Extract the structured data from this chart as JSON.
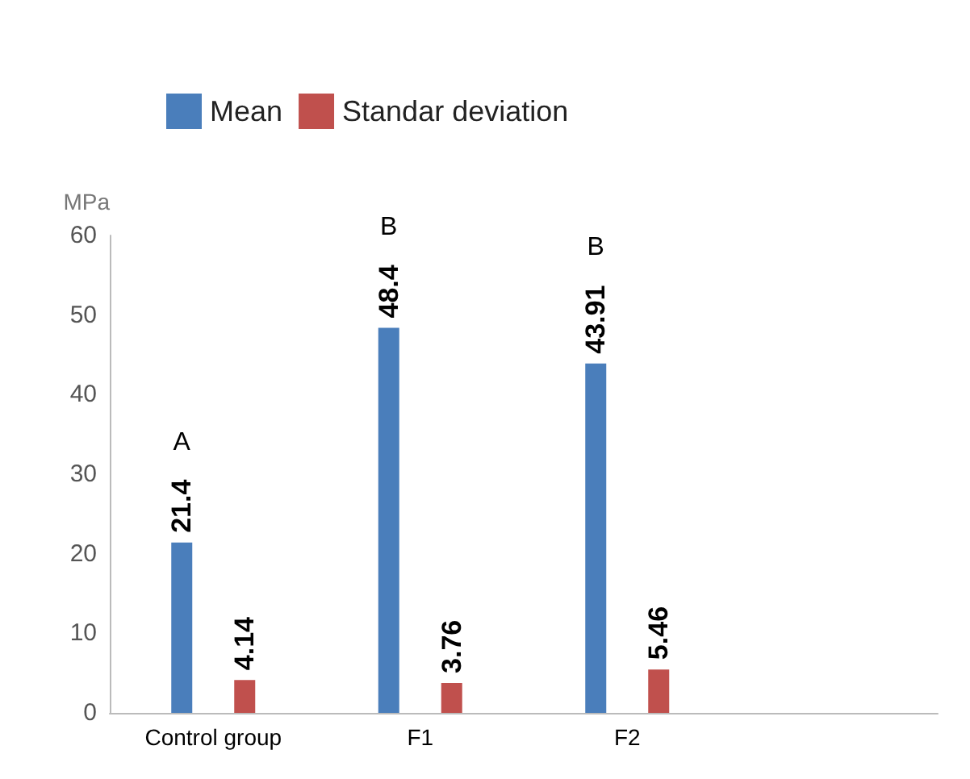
{
  "chart_data": {
    "type": "bar",
    "ylabel": "MPa",
    "categories": [
      "Control group",
      "F1",
      "F2",
      null
    ],
    "series": [
      {
        "name": "Mean",
        "color": "#4a7ebb",
        "values": [
          21.4,
          48.4,
          43.91,
          null
        ]
      },
      {
        "name": "Standar deviation",
        "color": "#c0504d",
        "values": [
          4.14,
          3.76,
          5.46,
          null
        ]
      }
    ],
    "ylim": [
      0,
      60
    ],
    "yticks": [
      0,
      10,
      20,
      30,
      40,
      50,
      60
    ],
    "grid": false,
    "legend": "top left",
    "data_labels": true,
    "annotations": [
      "A",
      "B",
      "B"
    ]
  }
}
